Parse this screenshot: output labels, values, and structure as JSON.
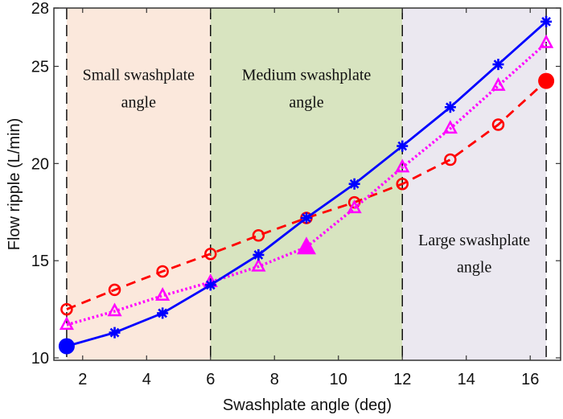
{
  "chart_data": {
    "type": "line",
    "title": "",
    "xlabel": "Swashplate angle (deg)",
    "ylabel": "Flow ripple (L/min)",
    "xlim": [
      1.1,
      16.95
    ],
    "ylim": [
      10,
      28
    ],
    "xticks": [
      2,
      4,
      6,
      8,
      10,
      12,
      14,
      16
    ],
    "yticks": [
      10,
      15,
      20,
      25,
      28
    ],
    "grid": false,
    "legend": null,
    "regions": [
      {
        "name": "small",
        "x_range": [
          1.5,
          6
        ],
        "label_lines": [
          "Small swashplate",
          "angle"
        ],
        "color": "#fbe8dc",
        "label_x": 3.75,
        "label_y": [
          24.3,
          22.9
        ]
      },
      {
        "name": "medium",
        "x_range": [
          6,
          12
        ],
        "label_lines": [
          "Medium swashplate",
          "angle"
        ],
        "color": "#d8e4c0",
        "label_x": 9.0,
        "label_y": [
          24.3,
          22.9
        ]
      },
      {
        "name": "large",
        "x_range": [
          12,
          16.5
        ],
        "label_lines": [
          "Large swashplate",
          "angle"
        ],
        "color": "#ebe8f0",
        "label_x": 14.25,
        "label_y": [
          15.8,
          14.4
        ]
      }
    ],
    "boundaries": [
      1.5,
      6,
      12,
      16.5
    ],
    "x": [
      1.5,
      3,
      4.5,
      6,
      7.5,
      9,
      10.5,
      12,
      13.5,
      15,
      16.5
    ],
    "series": [
      {
        "name": "blue-star-solid",
        "color": "#0000ff",
        "line_style": "solid",
        "marker": "star",
        "values": [
          10.6,
          11.3,
          12.3,
          13.75,
          15.3,
          17.2,
          18.95,
          20.9,
          22.9,
          25.1,
          27.3
        ],
        "highlight_index": 0,
        "highlight_marker": "filled-circle"
      },
      {
        "name": "magenta-triangle-dotted",
        "color": "#ff00ff",
        "line_style": "dotted",
        "marker": "triangle",
        "values": [
          11.7,
          12.4,
          13.2,
          13.9,
          14.7,
          15.7,
          17.7,
          19.8,
          21.8,
          24.0,
          26.2
        ],
        "highlight_index": 5,
        "highlight_marker": "filled-triangle"
      },
      {
        "name": "red-circle-dashed",
        "color": "#ff0000",
        "line_style": "dashed",
        "marker": "circle",
        "values": [
          12.5,
          13.5,
          14.45,
          15.35,
          16.3,
          17.2,
          18.0,
          18.95,
          20.2,
          22.0,
          24.25
        ],
        "highlight_index": 10,
        "highlight_marker": "filled-circle"
      }
    ]
  }
}
